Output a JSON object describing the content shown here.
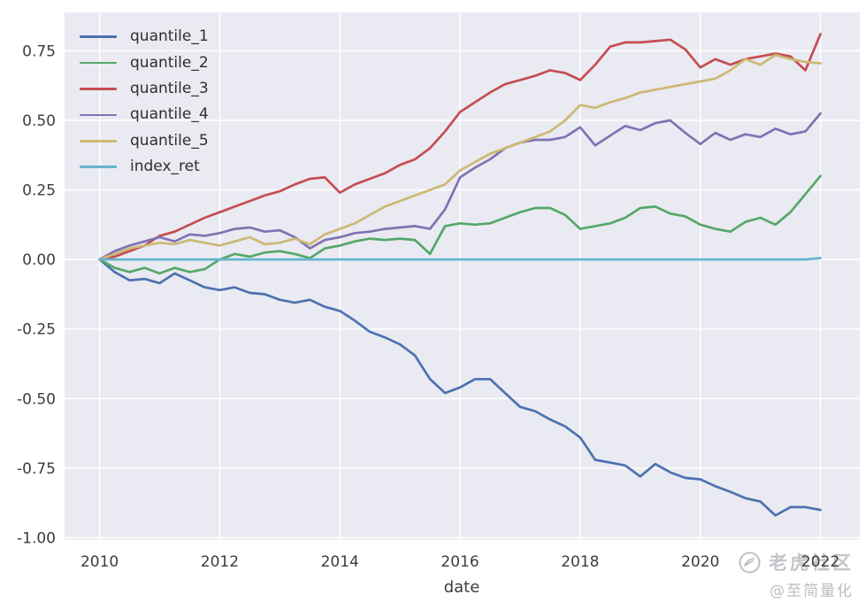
{
  "watermark": {
    "brand": "老虎社区",
    "handle": "@至简量化"
  },
  "axis": {
    "tick_color": "#3d3d3d",
    "tick_font_size": 17
  },
  "chart_data": {
    "type": "line",
    "title": "",
    "xlabel": "date",
    "ylabel": "",
    "grid": true,
    "legend_position": "upper left",
    "plot_background": "#eaeaf2",
    "grid_color": "#ffffff",
    "xlim": [
      2009.417,
      2022.655
    ],
    "ylim": [
      -1.008,
      0.888
    ],
    "x_ticks": [
      2010,
      2012,
      2014,
      2016,
      2018,
      2020,
      2022
    ],
    "y_ticks": [
      0.75,
      0.5,
      0.25,
      0.0,
      -0.25,
      -0.5,
      -0.75,
      -1.0
    ],
    "x": [
      2010.0,
      2010.25,
      2010.5,
      2010.75,
      2011.0,
      2011.25,
      2011.5,
      2011.75,
      2012.0,
      2012.25,
      2012.5,
      2012.75,
      2013.0,
      2013.25,
      2013.5,
      2013.75,
      2014.0,
      2014.25,
      2014.5,
      2014.75,
      2015.0,
      2015.25,
      2015.5,
      2015.75,
      2016.0,
      2016.25,
      2016.5,
      2016.75,
      2017.0,
      2017.25,
      2017.5,
      2017.75,
      2018.0,
      2018.25,
      2018.5,
      2018.75,
      2019.0,
      2019.25,
      2019.5,
      2019.75,
      2020.0,
      2020.25,
      2020.5,
      2020.75,
      2021.0,
      2021.25,
      2021.5,
      2021.75,
      2022.0
    ],
    "series": [
      {
        "name": "quantile_1",
        "color": "#4c72b0",
        "values": [
          0.0,
          -0.045,
          -0.075,
          -0.07,
          -0.085,
          -0.05,
          -0.075,
          -0.1,
          -0.11,
          -0.1,
          -0.12,
          -0.125,
          -0.145,
          -0.155,
          -0.145,
          -0.17,
          -0.185,
          -0.22,
          -0.26,
          -0.28,
          -0.305,
          -0.345,
          -0.43,
          -0.48,
          -0.46,
          -0.43,
          -0.43,
          -0.48,
          -0.53,
          -0.545,
          -0.575,
          -0.6,
          -0.64,
          -0.72,
          -0.73,
          -0.74,
          -0.78,
          -0.735,
          -0.765,
          -0.785,
          -0.79,
          -0.815,
          -0.835,
          -0.858,
          -0.87,
          -0.92,
          -0.89,
          -0.89,
          -0.9
        ]
      },
      {
        "name": "quantile_2",
        "color": "#55a868",
        "values": [
          0.0,
          -0.03,
          -0.045,
          -0.03,
          -0.05,
          -0.03,
          -0.045,
          -0.035,
          0.0,
          0.02,
          0.01,
          0.025,
          0.03,
          0.02,
          0.005,
          0.04,
          0.05,
          0.065,
          0.075,
          0.07,
          0.075,
          0.07,
          0.02,
          0.12,
          0.13,
          0.125,
          0.13,
          0.15,
          0.17,
          0.185,
          0.185,
          0.16,
          0.11,
          0.12,
          0.13,
          0.15,
          0.185,
          0.19,
          0.165,
          0.155,
          0.125,
          0.11,
          0.1,
          0.135,
          0.15,
          0.125,
          0.17,
          0.235,
          0.3
        ]
      },
      {
        "name": "quantile_3",
        "color": "#c44e52",
        "values": [
          0.0,
          0.01,
          0.03,
          0.05,
          0.085,
          0.1,
          0.125,
          0.15,
          0.17,
          0.19,
          0.21,
          0.23,
          0.245,
          0.27,
          0.29,
          0.295,
          0.24,
          0.27,
          0.29,
          0.31,
          0.34,
          0.36,
          0.4,
          0.46,
          0.53,
          0.565,
          0.6,
          0.63,
          0.645,
          0.66,
          0.68,
          0.67,
          0.645,
          0.7,
          0.765,
          0.78,
          0.78,
          0.785,
          0.79,
          0.755,
          0.69,
          0.72,
          0.7,
          0.72,
          0.73,
          0.74,
          0.73,
          0.68,
          0.81
        ]
      },
      {
        "name": "quantile_4",
        "color": "#8172b2",
        "values": [
          0.0,
          0.03,
          0.05,
          0.065,
          0.08,
          0.065,
          0.09,
          0.085,
          0.095,
          0.11,
          0.115,
          0.1,
          0.105,
          0.08,
          0.04,
          0.07,
          0.08,
          0.095,
          0.1,
          0.11,
          0.115,
          0.12,
          0.11,
          0.18,
          0.295,
          0.33,
          0.36,
          0.4,
          0.42,
          0.43,
          0.43,
          0.44,
          0.475,
          0.41,
          0.445,
          0.48,
          0.465,
          0.49,
          0.5,
          0.455,
          0.415,
          0.455,
          0.43,
          0.45,
          0.44,
          0.47,
          0.45,
          0.46,
          0.525
        ]
      },
      {
        "name": "quantile_5",
        "color": "#ccb974",
        "values": [
          0.0,
          0.02,
          0.04,
          0.05,
          0.06,
          0.055,
          0.07,
          0.06,
          0.05,
          0.065,
          0.08,
          0.055,
          0.06,
          0.075,
          0.055,
          0.09,
          0.11,
          0.13,
          0.16,
          0.19,
          0.21,
          0.23,
          0.25,
          0.27,
          0.32,
          0.35,
          0.38,
          0.4,
          0.42,
          0.44,
          0.46,
          0.5,
          0.555,
          0.545,
          0.565,
          0.58,
          0.6,
          0.61,
          0.62,
          0.63,
          0.64,
          0.65,
          0.68,
          0.72,
          0.7,
          0.735,
          0.72,
          0.71,
          0.705
        ]
      },
      {
        "name": "index_ret",
        "color": "#64b5cd",
        "values": [
          0.0,
          0.0,
          0.0,
          0.0,
          0.0,
          0.0,
          0.0,
          0.0,
          0.0,
          0.0,
          0.0,
          0.0,
          0.0,
          0.0,
          0.0,
          0.0,
          0.0,
          0.0,
          0.0,
          0.0,
          0.0,
          0.0,
          0.0,
          0.0,
          0.0,
          0.0,
          0.0,
          0.0,
          0.0,
          0.0,
          0.0,
          0.0,
          0.0,
          0.0,
          0.0,
          0.0,
          0.0,
          0.0,
          0.0,
          0.0,
          0.0,
          0.0,
          0.0,
          0.0,
          0.0,
          0.0,
          0.0,
          0.0,
          0.005
        ]
      }
    ]
  }
}
